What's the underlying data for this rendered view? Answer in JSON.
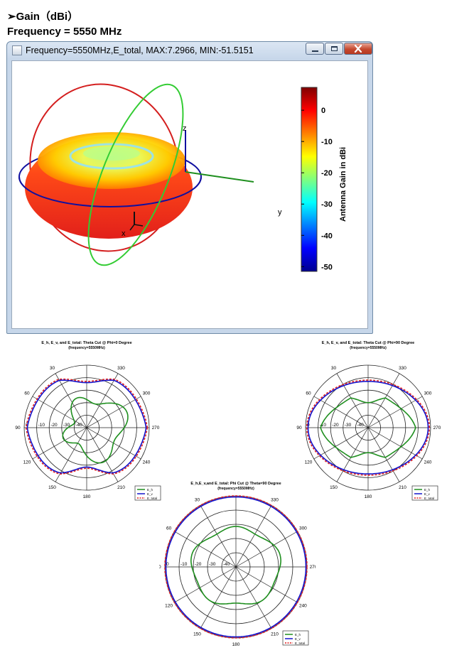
{
  "headings": {
    "gain": "➢Gain（dBi）",
    "frequency": "Frequency = 5550 MHz"
  },
  "window": {
    "title": "Frequency=5550MHz,E_total, MAX:7.2966, MIN:-51.5151",
    "icons": [
      "app-icon",
      "minimize-icon",
      "maximize-icon",
      "close-icon"
    ]
  },
  "chart_data": [
    {
      "type": "surface3d",
      "title": "Frequency=5550MHz,E_total, MAX:7.2966, MIN:-51.5151",
      "max": 7.2966,
      "min": -51.5151,
      "axes": [
        "z",
        "y",
        "x"
      ],
      "colorbar": {
        "label": "Antenna Gain in dBi",
        "ticks": [
          0,
          -10,
          -20,
          -30,
          -40,
          -50
        ],
        "range": [
          -51.5151,
          7.2966
        ],
        "colormap": "jet"
      }
    },
    {
      "type": "polar",
      "title": "E_h, E_v, and E_total: Theta Cut @ Phi=0 Degree",
      "subtitle": "(frequency=5550MHz)",
      "angle_labels": [
        "0",
        "30",
        "60",
        "90",
        "120",
        "150",
        "180",
        "210",
        "240",
        "270",
        "300",
        "330"
      ],
      "radial_labels": [
        "0",
        "-10",
        "-20",
        "-30",
        "-40"
      ],
      "legend": [
        "E_h",
        "E_v",
        "E_total"
      ],
      "colors": [
        "#1f8f1f",
        "#1212cc",
        "#e02020"
      ]
    },
    {
      "type": "polar",
      "title": "E_h, E_v, and E_total: Theta Cut @ Phi=90 Degree",
      "subtitle": "(frequency=5550MHz)",
      "angle_labels": [
        "0",
        "30",
        "60",
        "90",
        "120",
        "150",
        "180",
        "210",
        "240",
        "270",
        "300",
        "330"
      ],
      "radial_labels": [
        "0",
        "-10",
        "-20",
        "-30",
        "-40"
      ],
      "legend": [
        "E_h",
        "E_v",
        "E_total"
      ],
      "colors": [
        "#1f8f1f",
        "#1212cc",
        "#e02020"
      ]
    },
    {
      "type": "polar",
      "title": "E_h,E_v,and E_total: Phi Cut @ Theta=90 Degree",
      "subtitle": "(frequency=5550MHz)",
      "angle_labels": [
        "0",
        "30",
        "60",
        "90",
        "120",
        "150",
        "180",
        "210",
        "240",
        "270",
        "300",
        "330"
      ],
      "radial_labels": [
        "0",
        "-10",
        "-20",
        "-30",
        "-40"
      ],
      "legend": [
        "E_h",
        "E_v",
        "E_total"
      ],
      "colors": [
        "#1f8f1f",
        "#1212cc",
        "#e02020"
      ]
    }
  ]
}
